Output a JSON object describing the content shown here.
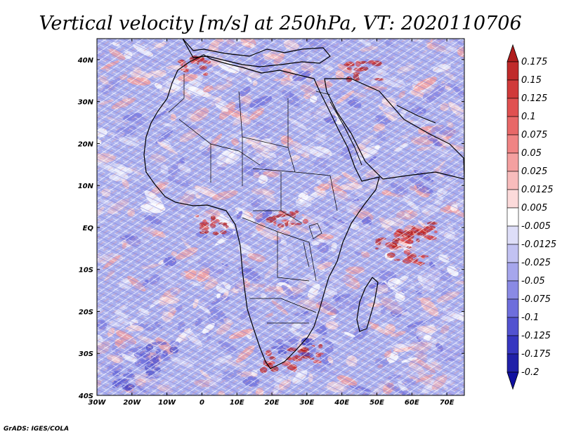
{
  "title": "Vertical velocity [m/s] at 250hPa, VT: 2020110706",
  "credit": "GrADS: IGES/COLA",
  "map": {
    "lon_range": [
      -30,
      75
    ],
    "lat_range": [
      -40,
      45
    ],
    "lon_ticks": [
      "30W",
      "20W",
      "10W",
      "0",
      "10E",
      "20E",
      "30E",
      "40E",
      "50E",
      "60E",
      "70E"
    ],
    "lat_ticks": [
      "40N",
      "30N",
      "20N",
      "10N",
      "EQ",
      "10S",
      "20S",
      "30S",
      "40S"
    ]
  },
  "colorbar": {
    "labels": [
      "0.175",
      "0.15",
      "0.125",
      "0.1",
      "0.075",
      "0.05",
      "0.025",
      "0.0125",
      "0.005",
      "-0.005",
      "-0.0125",
      "-0.025",
      "-0.05",
      "-0.075",
      "-0.1",
      "-0.125",
      "-0.175",
      "-0.2"
    ],
    "colors": [
      "#b01c1c",
      "#c02a2a",
      "#d03a3a",
      "#e05050",
      "#e86868",
      "#f08484",
      "#f4a0a0",
      "#f8bcbc",
      "#fcdada",
      "#ffffff",
      "#dedef8",
      "#c2c2f2",
      "#a6a6ec",
      "#8a8ae4",
      "#6e6edc",
      "#5252d0",
      "#3636c0",
      "#2020a8",
      "#1010a0"
    ]
  },
  "colors": {
    "frame": "#000000",
    "ocean_base": "#aab0ee",
    "land_base": "#b8b8ee"
  }
}
